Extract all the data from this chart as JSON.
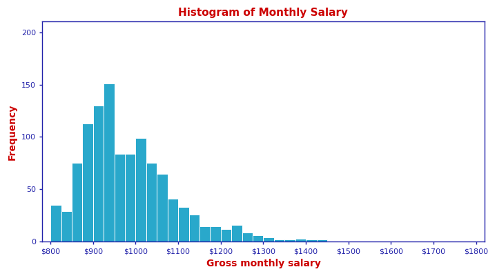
{
  "title": "Histogram of Monthly Salary",
  "xlabel": "Gross monthly salary",
  "ylabel": "Frequency",
  "title_color": "#cc0000",
  "label_color": "#cc0000",
  "bar_color": "#29a8cb",
  "bar_edge_color": "#ffffff",
  "axis_color": "#2222aa",
  "tick_color": "#2222aa",
  "bin_start": 800,
  "bin_width": 25,
  "frequencies": [
    35,
    29,
    75,
    113,
    130,
    151,
    84,
    84,
    99,
    75,
    65,
    41,
    33,
    26,
    15,
    15,
    12,
    16,
    9,
    6,
    4,
    2,
    2,
    3,
    2,
    2,
    1,
    0,
    0,
    0,
    0,
    0,
    0,
    0,
    0,
    0,
    0,
    0,
    0,
    0
  ],
  "xtick_positions": [
    800,
    900,
    1000,
    1100,
    1200,
    1300,
    1400,
    1500,
    1600,
    1700,
    1800
  ],
  "xtick_labels": [
    "$800",
    "$900",
    "$1000",
    "$1100",
    "$1200",
    "$1300",
    "$1400",
    "$1500",
    "$1600",
    "$1700",
    "$1800"
  ],
  "ytick_positions": [
    0,
    50,
    100,
    150,
    200
  ],
  "ylim": [
    0,
    210
  ],
  "xlim": [
    780,
    1820
  ]
}
